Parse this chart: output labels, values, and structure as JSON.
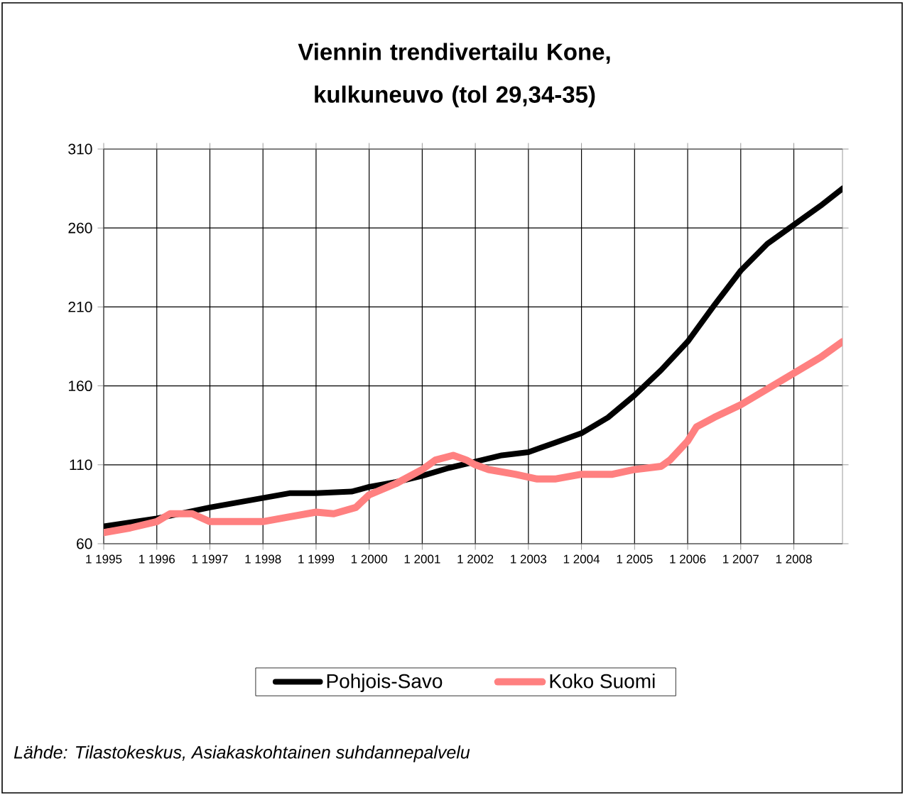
{
  "chart_data": {
    "type": "line",
    "title": "Viennin trendivertailu Kone, kulkuneuvo (tol 29,34-35)",
    "annotations": [
      "Lähde: Tilastokeskus, Asiakaskohtainen suhdannepalvelu"
    ],
    "xlim": [
      "1995-01",
      "2008-12"
    ],
    "ylim": [
      60,
      310
    ],
    "xticks": [
      {
        "value": "1995-01",
        "label": "1 1995"
      },
      {
        "value": "1996-01",
        "label": "1 1996"
      },
      {
        "value": "1997-01",
        "label": "1 1997"
      },
      {
        "value": "1998-01",
        "label": "1 1998"
      },
      {
        "value": "1999-01",
        "label": "1 1999"
      },
      {
        "value": "2000-01",
        "label": "1 2000"
      },
      {
        "value": "2001-01",
        "label": "1 2001"
      },
      {
        "value": "2002-01",
        "label": "1 2002"
      },
      {
        "value": "2003-01",
        "label": "1 2003"
      },
      {
        "value": "2004-01",
        "label": "1 2004"
      },
      {
        "value": "2005-01",
        "label": "1 2005"
      },
      {
        "value": "2006-01",
        "label": "1 2006"
      },
      {
        "value": "2007-01",
        "label": "1 2007"
      },
      {
        "value": "2008-01",
        "label": "1 2008"
      }
    ],
    "yticks": [
      60,
      110,
      160,
      210,
      260,
      310
    ],
    "grid": true,
    "legend": "bottom",
    "marker": "none",
    "line_style": "solid",
    "series": [
      {
        "name": "Pohjois-Savo",
        "color": "#000000",
        "x": [
          "1995-01",
          "1996-01",
          "1997-01",
          "1998-01",
          "1998-07",
          "1999-01",
          "1999-09",
          "2000-01",
          "2000-07",
          "2001-01",
          "2001-07",
          "2002-01",
          "2002-07",
          "2003-01",
          "2003-07",
          "2004-01",
          "2004-07",
          "2005-01",
          "2005-07",
          "2006-01",
          "2006-07",
          "2007-01",
          "2007-07",
          "2008-01",
          "2008-07",
          "2008-12"
        ],
        "values": [
          71,
          76,
          83,
          89,
          92,
          92,
          93,
          96,
          99,
          103,
          108,
          112,
          116,
          118,
          124,
          130,
          140,
          154,
          170,
          188,
          211,
          233,
          250,
          262,
          274,
          285
        ]
      },
      {
        "name": "Koko Suomi",
        "color": "#ff8080",
        "x": [
          "1995-01",
          "1995-07",
          "1996-01",
          "1996-04",
          "1996-09",
          "1997-01",
          "1997-07",
          "1998-01",
          "1998-07",
          "1999-01",
          "1999-05",
          "1999-10",
          "2000-01",
          "2000-07",
          "2001-01",
          "2001-04",
          "2001-08",
          "2001-11",
          "2002-01",
          "2002-04",
          "2002-10",
          "2003-03",
          "2003-07",
          "2004-01",
          "2004-08",
          "2005-01",
          "2005-07",
          "2005-09",
          "2006-01",
          "2006-03",
          "2006-07",
          "2007-01",
          "2007-07",
          "2008-01",
          "2008-07",
          "2008-12"
        ],
        "values": [
          67,
          70,
          74,
          79,
          79,
          74,
          74,
          74,
          77,
          80,
          79,
          83,
          91,
          98,
          107,
          113,
          116,
          113,
          110,
          107,
          104,
          101,
          101,
          104,
          104,
          107,
          109,
          113,
          125,
          134,
          140,
          148,
          158,
          168,
          178,
          188
        ]
      }
    ]
  }
}
